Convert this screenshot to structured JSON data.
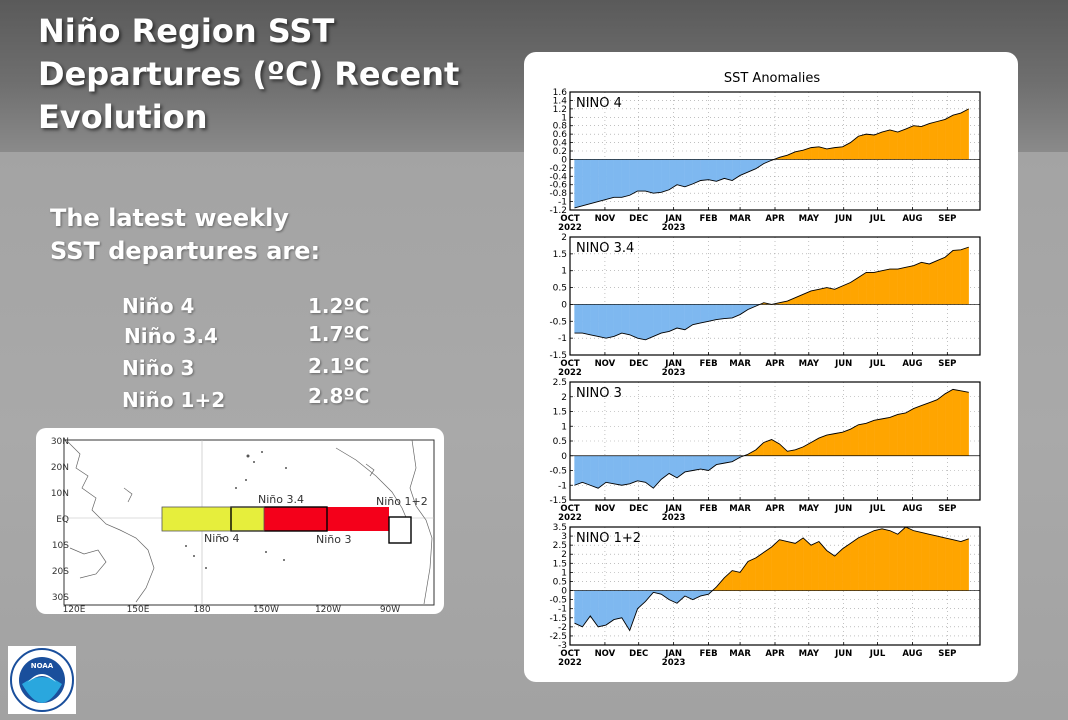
{
  "slide": {
    "title_lines": [
      "Niño Region SST",
      "Departures (ºC) Recent",
      "Evolution"
    ],
    "intro_lines": [
      "The latest weekly",
      "SST departures are:"
    ],
    "readings": [
      {
        "region": "Niño 4",
        "value": "1.2ºC"
      },
      {
        "region": "Niño 3.4",
        "value": "1.7ºC"
      },
      {
        "region": "Niño 3",
        "value": "2.1ºC"
      },
      {
        "region": "Niño 1+2",
        "value": "2.8ºC"
      }
    ]
  },
  "map": {
    "lat_labels": [
      "30N",
      "20N",
      "10N",
      "EQ",
      "10S",
      "20S",
      "30S"
    ],
    "lon_labels": [
      "120E",
      "150E",
      "180",
      "150W",
      "120W",
      "90W"
    ],
    "region_labels": [
      "Niño 4",
      "Niño 3.4",
      "Niño 3",
      "Niño 1+2"
    ],
    "colors": {
      "nino4": "#e6ee3c",
      "nino3": "#f4001a",
      "nino12": "#ffffff"
    }
  },
  "chart_data": {
    "type": "area",
    "title": "SST Anomalies",
    "x_tick_labels": [
      "OCT",
      "NOV",
      "DEC",
      "JAN",
      "FEB",
      "MAR",
      "APR",
      "MAY",
      "JUN",
      "JUL",
      "AUG",
      "SEP"
    ],
    "x_year_labels": [
      {
        "label": "2022",
        "at": "OCT"
      },
      {
        "label": "2023",
        "at": "JAN"
      }
    ],
    "x_weeks": [
      "2022-10-05",
      "2022-10-12",
      "2022-10-19",
      "2022-10-26",
      "2022-11-02",
      "2022-11-09",
      "2022-11-16",
      "2022-11-23",
      "2022-11-30",
      "2022-12-07",
      "2022-12-14",
      "2022-12-21",
      "2022-12-28",
      "2023-01-04",
      "2023-01-11",
      "2023-01-18",
      "2023-01-25",
      "2023-02-01",
      "2023-02-08",
      "2023-02-15",
      "2023-02-22",
      "2023-03-01",
      "2023-03-08",
      "2023-03-15",
      "2023-03-22",
      "2023-03-29",
      "2023-04-05",
      "2023-04-12",
      "2023-04-19",
      "2023-04-26",
      "2023-05-03",
      "2023-05-10",
      "2023-05-17",
      "2023-05-24",
      "2023-05-31",
      "2023-06-07",
      "2023-06-14",
      "2023-06-21",
      "2023-06-28",
      "2023-07-05",
      "2023-07-12",
      "2023-07-19",
      "2023-07-26",
      "2023-08-02",
      "2023-08-09",
      "2023-08-16",
      "2023-08-23",
      "2023-08-30",
      "2023-09-06",
      "2023-09-13",
      "2023-09-20"
    ],
    "grid": true,
    "positive_color": "#ffa500",
    "negative_color": "#7eb8f0",
    "panels": [
      {
        "name": "NINO 4",
        "ylim": [
          -1.2,
          1.6
        ],
        "yticks": [
          "-1.2",
          "-1",
          "-0.8",
          "-0.6",
          "-0.4",
          "-0.2",
          "0",
          "0.2",
          "0.4",
          "0.6",
          "0.8",
          "1",
          "1.2",
          "1.4",
          "1.6"
        ],
        "values": [
          -1.15,
          -1.1,
          -1.05,
          -1.0,
          -0.95,
          -0.9,
          -0.9,
          -0.85,
          -0.75,
          -0.75,
          -0.8,
          -0.78,
          -0.72,
          -0.6,
          -0.65,
          -0.58,
          -0.5,
          -0.48,
          -0.52,
          -0.45,
          -0.5,
          -0.38,
          -0.3,
          -0.22,
          -0.1,
          -0.02,
          0.05,
          0.1,
          0.18,
          0.22,
          0.28,
          0.3,
          0.25,
          0.28,
          0.3,
          0.4,
          0.55,
          0.6,
          0.58,
          0.65,
          0.7,
          0.65,
          0.72,
          0.8,
          0.78,
          0.85,
          0.9,
          0.95,
          1.05,
          1.1,
          1.2
        ]
      },
      {
        "name": "NINO 3.4",
        "ylim": [
          -1.5,
          2
        ],
        "yticks": [
          "-1.5",
          "-1",
          "-0.5",
          "0",
          "0.5",
          "1",
          "1.5",
          "2"
        ],
        "values": [
          -0.85,
          -0.85,
          -0.9,
          -0.95,
          -1.0,
          -0.95,
          -0.85,
          -0.9,
          -1.0,
          -1.05,
          -0.95,
          -0.85,
          -0.8,
          -0.7,
          -0.75,
          -0.6,
          -0.55,
          -0.5,
          -0.45,
          -0.42,
          -0.4,
          -0.3,
          -0.15,
          -0.05,
          0.05,
          0.0,
          0.05,
          0.1,
          0.2,
          0.3,
          0.4,
          0.45,
          0.5,
          0.45,
          0.55,
          0.65,
          0.8,
          0.95,
          0.95,
          1.0,
          1.05,
          1.05,
          1.1,
          1.15,
          1.25,
          1.2,
          1.3,
          1.4,
          1.6,
          1.62,
          1.7
        ]
      },
      {
        "name": "NINO 3",
        "ylim": [
          -1.5,
          2.5
        ],
        "yticks": [
          "-1.5",
          "-1",
          "-0.5",
          "0",
          "0.5",
          "1",
          "1.5",
          "2",
          "2.5"
        ],
        "values": [
          -1.0,
          -0.9,
          -1.0,
          -1.1,
          -0.9,
          -0.95,
          -1.0,
          -0.95,
          -0.85,
          -0.9,
          -1.1,
          -0.8,
          -0.6,
          -0.75,
          -0.55,
          -0.5,
          -0.45,
          -0.5,
          -0.3,
          -0.25,
          -0.2,
          -0.05,
          0.05,
          0.2,
          0.45,
          0.55,
          0.4,
          0.15,
          0.2,
          0.3,
          0.45,
          0.6,
          0.7,
          0.75,
          0.8,
          0.9,
          1.05,
          1.1,
          1.2,
          1.25,
          1.3,
          1.4,
          1.45,
          1.6,
          1.7,
          1.8,
          1.9,
          2.1,
          2.25,
          2.2,
          2.15
        ]
      },
      {
        "name": "NINO 1+2",
        "ylim": [
          -3,
          3.5
        ],
        "yticks": [
          "-3",
          "-2.5",
          "-2",
          "-1.5",
          "-1",
          "-0.5",
          "0",
          "0.5",
          "1",
          "1.5",
          "2",
          "2.5",
          "3",
          "3.5"
        ],
        "values": [
          -1.8,
          -2.0,
          -1.4,
          -2.0,
          -1.9,
          -1.6,
          -1.5,
          -2.2,
          -1.0,
          -0.6,
          -0.1,
          -0.2,
          -0.5,
          -0.7,
          -0.3,
          -0.5,
          -0.3,
          -0.2,
          0.2,
          0.7,
          1.1,
          1.0,
          1.6,
          1.8,
          2.1,
          2.4,
          2.8,
          2.7,
          2.6,
          2.9,
          2.5,
          2.7,
          2.2,
          1.9,
          2.3,
          2.6,
          2.9,
          3.1,
          3.3,
          3.4,
          3.3,
          3.1,
          3.5,
          3.3,
          3.2,
          3.1,
          3.0,
          2.9,
          2.8,
          2.7,
          2.85
        ]
      }
    ]
  },
  "logo": {
    "text": "NOAA"
  }
}
